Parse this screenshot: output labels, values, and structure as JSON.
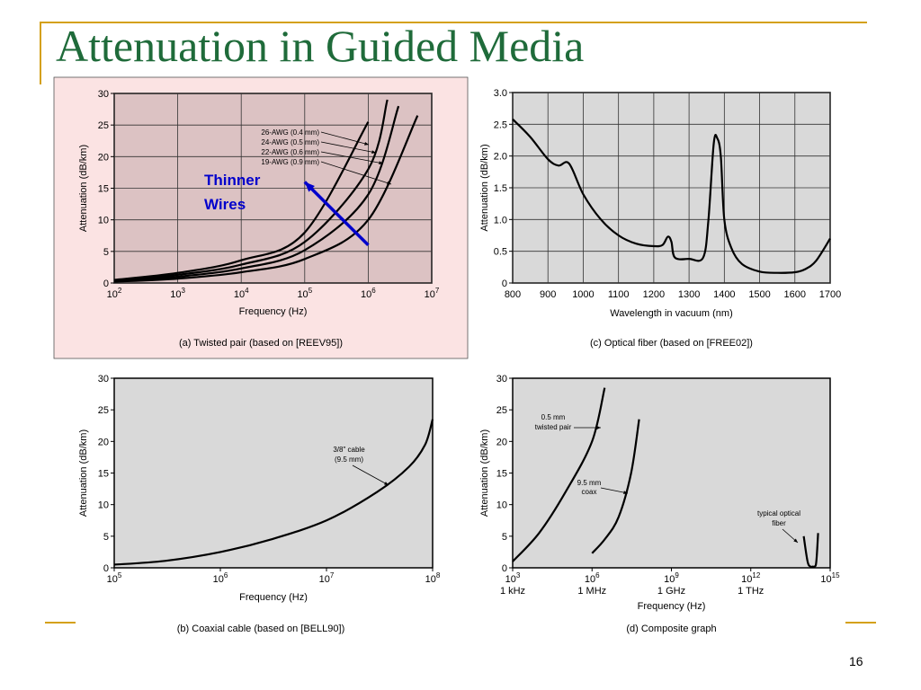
{
  "slide": {
    "title": "Attenuation in Guided Media",
    "number": "16"
  },
  "chart_data": [
    {
      "type": "line",
      "caption": "(a) Twisted pair (based on [REEV95])",
      "xlabel": "Frequency (Hz)",
      "ylabel": "Attenuation (dB/km)",
      "x_scale": "log",
      "xlim": [
        100,
        10000000
      ],
      "ylim": [
        0,
        30
      ],
      "x_ticks": [
        {
          "value": 100,
          "base": "10",
          "exp": "2"
        },
        {
          "value": 1000,
          "base": "10",
          "exp": "3"
        },
        {
          "value": 10000,
          "base": "10",
          "exp": "4"
        },
        {
          "value": 100000,
          "base": "10",
          "exp": "5"
        },
        {
          "value": 1000000,
          "base": "10",
          "exp": "6"
        },
        {
          "value": 10000000,
          "base": "10",
          "exp": "7"
        }
      ],
      "y_ticks": [
        "0",
        "5",
        "10",
        "15",
        "20",
        "25",
        "30"
      ],
      "grid": true,
      "series": [
        {
          "name": "26-AWG (0.4 mm)",
          "x": [
            100,
            1000,
            10000,
            100000,
            1000000
          ],
          "y": [
            0.5,
            1.6,
            3.6,
            8,
            25.5
          ]
        },
        {
          "name": "24-AWG (0.5 mm)",
          "x": [
            100,
            1000,
            10000,
            100000,
            1000000,
            2000000
          ],
          "y": [
            0.4,
            1.3,
            2.9,
            6.5,
            18,
            29
          ]
        },
        {
          "name": "22-AWG (0.6 mm)",
          "x": [
            100,
            1000,
            10000,
            100000,
            1000000,
            3000000
          ],
          "y": [
            0.3,
            1,
            2.3,
            5.2,
            14,
            28
          ]
        },
        {
          "name": "19-AWG (0.9 mm)",
          "x": [
            100,
            1000,
            10000,
            100000,
            1000000,
            6000000
          ],
          "y": [
            0.2,
            0.7,
            1.7,
            3.8,
            10,
            26.5
          ]
        }
      ],
      "annotation": {
        "text_lines": [
          "Thinner",
          "Wires"
        ],
        "color": "#0000cc",
        "arrow_from": [
          1000000,
          6
        ],
        "arrow_to": [
          100000,
          16
        ]
      }
    },
    {
      "type": "line",
      "caption": "(c) Optical fiber (based on [FREE02])",
      "xlabel": "Wavelength in vacuum (nm)",
      "ylabel": "Attenuation (dB/km)",
      "xlim": [
        800,
        1700
      ],
      "ylim": [
        0,
        3.0
      ],
      "x_ticks": [
        "800",
        "900",
        "1000",
        "1100",
        "1200",
        "1300",
        "1400",
        "1500",
        "1600",
        "1700"
      ],
      "y_ticks": [
        "0",
        "0.5",
        "1.0",
        "1.5",
        "2.0",
        "2.5",
        "3.0"
      ],
      "grid": true,
      "series": [
        {
          "x": [
            800,
            850,
            900,
            930,
            960,
            1000,
            1050,
            1100,
            1150,
            1200,
            1225,
            1240,
            1250,
            1260,
            1300,
            1340,
            1355,
            1370,
            1380,
            1390,
            1400,
            1420,
            1450,
            1500,
            1550,
            1600,
            1630,
            1660,
            1700
          ],
          "y": [
            2.58,
            2.3,
            1.95,
            1.85,
            1.88,
            1.4,
            1.0,
            0.75,
            0.62,
            0.58,
            0.6,
            0.73,
            0.65,
            0.4,
            0.38,
            0.4,
            1.0,
            2.2,
            2.28,
            2.0,
            1.0,
            0.55,
            0.3,
            0.18,
            0.16,
            0.17,
            0.22,
            0.35,
            0.7
          ]
        }
      ]
    },
    {
      "type": "line",
      "caption": "(b) Coaxial cable (based on [BELL90])",
      "xlabel": "Frequency (Hz)",
      "ylabel": "Attenuation (dB/km)",
      "x_scale": "log",
      "xlim": [
        100000,
        100000000
      ],
      "ylim": [
        0,
        30
      ],
      "x_ticks": [
        {
          "value": 100000,
          "base": "10",
          "exp": "5"
        },
        {
          "value": 1000000,
          "base": "10",
          "exp": "6"
        },
        {
          "value": 10000000,
          "base": "10",
          "exp": "7"
        },
        {
          "value": 100000000,
          "base": "10",
          "exp": "8"
        }
      ],
      "y_ticks": [
        "0",
        "5",
        "10",
        "15",
        "20",
        "25",
        "30"
      ],
      "grid": false,
      "series": [
        {
          "name": "3/8\" cable (9.5 mm)",
          "x": [
            100000,
            300000,
            1000000,
            3000000,
            10000000,
            30000000,
            60000000,
            85000000,
            100000000
          ],
          "y": [
            0.5,
            1.1,
            2.5,
            4.5,
            7.5,
            12,
            16,
            19.5,
            23.5
          ]
        }
      ],
      "annotation_lines": [
        "3/8\" cable",
        "(9.5 mm)"
      ]
    },
    {
      "type": "line",
      "caption": "(d) Composite graph",
      "xlabel": "Frequency (Hz)",
      "ylabel": "Attenuation (dB/km)",
      "x_scale": "log",
      "xlim": [
        1000,
        1000000000000000
      ],
      "ylim": [
        0,
        30
      ],
      "x_ticks": [
        {
          "value": 1000,
          "base": "10",
          "exp": "3",
          "sub": "1 kHz"
        },
        {
          "value": 1000000,
          "base": "10",
          "exp": "6",
          "sub": "1 MHz"
        },
        {
          "value": 1000000000,
          "base": "10",
          "exp": "9",
          "sub": "1 GHz"
        },
        {
          "value": 1000000000000,
          "base": "10",
          "exp": "12",
          "sub": "1 THz"
        },
        {
          "value": 1000000000000000,
          "base": "10",
          "exp": "15",
          "sub": ""
        }
      ],
      "y_ticks": [
        "0",
        "5",
        "10",
        "15",
        "20",
        "25",
        "30"
      ],
      "grid": false,
      "series": [
        {
          "name": "0.5 mm twisted pair",
          "x": [
            1000,
            10000,
            100000,
            1000000,
            3000000
          ],
          "y": [
            1,
            5.5,
            12,
            20,
            28.5
          ]
        },
        {
          "name": "9.5 mm coax",
          "x": [
            1000000,
            3000000,
            10000000,
            30000000,
            60000000
          ],
          "y": [
            2.3,
            4.5,
            8,
            15,
            23.5
          ]
        },
        {
          "name": "typical optical fiber",
          "x": [
            100000000000000,
            140000000000000,
            180000000000000,
            220000000000000,
            260000000000000,
            300000000000000,
            350000000000000
          ],
          "y": [
            5,
            1,
            0.2,
            0.2,
            0.2,
            1,
            5.5
          ]
        }
      ],
      "labels": {
        "twisted_pair": [
          "0.5 mm",
          "twisted pair"
        ],
        "coax": [
          "9.5 mm",
          "coax"
        ],
        "fiber": [
          "typical optical",
          "fiber"
        ]
      }
    }
  ],
  "colors": {
    "title": "#1f6b3a",
    "accent_line": "#d4a017",
    "panel_a_bg": "#fbe3e3",
    "plot_bg": "#d9d9d9",
    "plot_a_bg": "#dcc2c3",
    "annotation": "#0000cc"
  }
}
